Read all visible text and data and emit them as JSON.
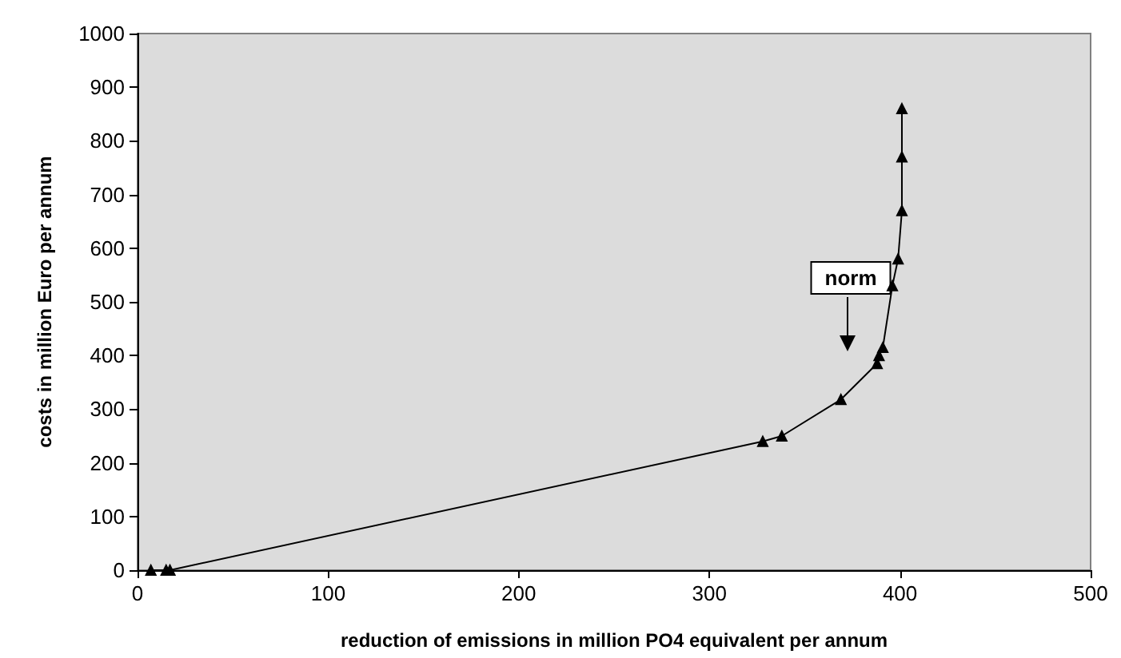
{
  "chart_data": {
    "type": "line",
    "xlabel": "reduction of emissions in million PO4 equivalent per annum",
    "ylabel": "costs in million Euro per annum",
    "x": [
      7,
      15,
      17,
      328,
      338,
      369,
      388,
      389,
      391,
      396,
      399,
      401,
      401,
      401
    ],
    "series": [
      {
        "color": "#000000",
        "values": [
          0,
          0,
          0,
          240,
          250,
          318,
          385,
          400,
          415,
          530,
          580,
          670,
          770,
          860
        ]
      }
    ],
    "xlim": [
      0,
      500
    ],
    "xticks": [
      0,
      100,
      200,
      300,
      400,
      500
    ],
    "ylim": [
      0,
      1000
    ],
    "yticks": [
      0,
      100,
      200,
      300,
      400,
      500,
      600,
      700,
      800,
      900,
      1000
    ],
    "grid": false,
    "marker": "triangle",
    "line_style": "solid",
    "annotations": [
      "norm"
    ]
  }
}
